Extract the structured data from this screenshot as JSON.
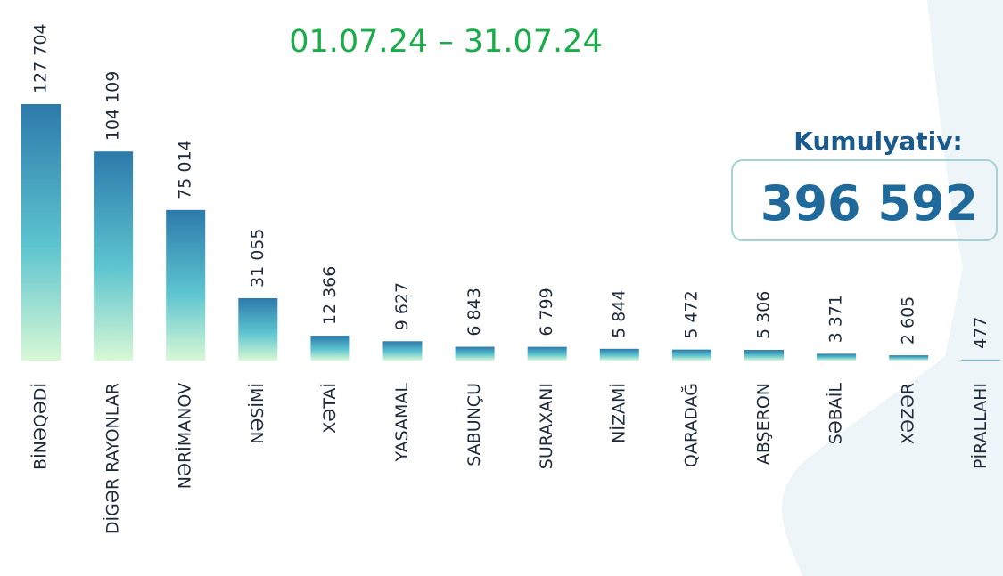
{
  "chart_data": {
    "type": "bar",
    "title": "01.07.24 – 31.07.24",
    "categories": [
      "BİNƏQƏDİ",
      "DİGƏR RAYONLAR",
      "NƏRİMANOV",
      "NƏSİMİ",
      "XƏTAİ",
      "YASAMAL",
      "SABUNÇU",
      "SURAXANI",
      "NİZAMİ",
      "QARADAĞ",
      "ABŞERON",
      "SƏBAİL",
      "XƏZƏR",
      "PİRALLAHI"
    ],
    "values": [
      127704,
      104109,
      75014,
      31055,
      12366,
      9627,
      6843,
      6799,
      5844,
      5472,
      5306,
      3371,
      2605,
      477
    ],
    "value_labels": [
      "127 704",
      "104 109",
      "75 014",
      "31 055",
      "12 366",
      "9 627",
      "6 843",
      "6 799",
      "5 844",
      "5 472",
      "5 306",
      "3 371",
      "2 605",
      "477"
    ],
    "colors": [
      "#2c7aab",
      "#d8f8d6"
    ],
    "total": {
      "label": "Kumulyativ:",
      "value": "396 592"
    }
  }
}
